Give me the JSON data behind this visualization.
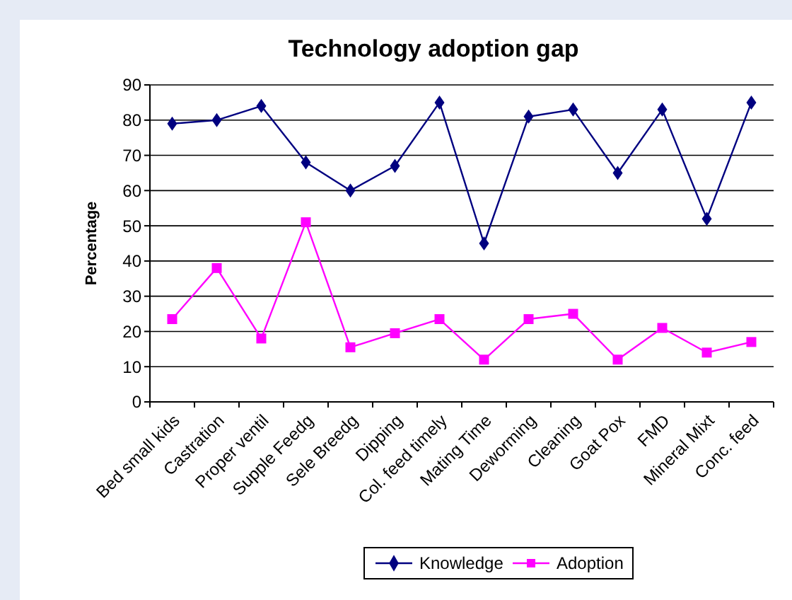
{
  "chart_data": {
    "type": "line",
    "title": "Technology adoption gap",
    "ylabel": "Percentage",
    "categories": [
      "Bed small kids",
      "Castration",
      "Proper ventil",
      "Supple Feedg",
      "Sele Breedg",
      "Dipping",
      "Col. feed timely",
      "Mating Time",
      "Deworming",
      "Cleaning",
      "Goat Pox",
      "FMD",
      "Mineral Mixt",
      "Conc. feed"
    ],
    "series": [
      {
        "name": "Knowledge",
        "color": "#000080",
        "marker": "diamond",
        "values": [
          79,
          80,
          84,
          68,
          60,
          67,
          85,
          45,
          81,
          83,
          65,
          83,
          52,
          85
        ]
      },
      {
        "name": "Adoption",
        "color": "#ff00ff",
        "marker": "square",
        "values": [
          23.5,
          38,
          18,
          51,
          15.5,
          19.5,
          23.5,
          12,
          23.5,
          25,
          12,
          21,
          14,
          17
        ]
      }
    ],
    "ylim": [
      0,
      90
    ],
    "yticks": [
      0,
      10,
      20,
      30,
      40,
      50,
      60,
      70,
      80,
      90
    ],
    "grid": "y",
    "legend": "bottom"
  }
}
